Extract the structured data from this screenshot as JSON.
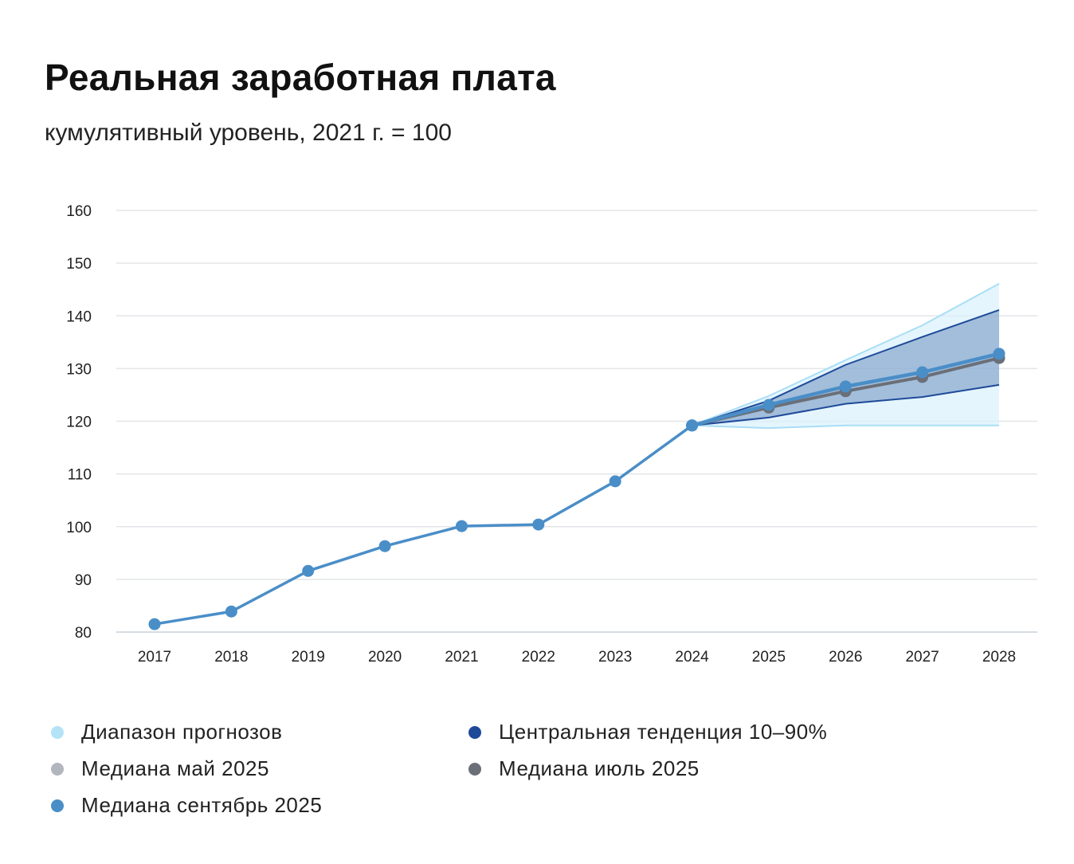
{
  "chart_data": {
    "type": "line",
    "title": "Реальная заработная плата",
    "subtitle": "кумулятивный уровень, 2021 г. = 100",
    "x": [
      2017,
      2018,
      2019,
      2020,
      2021,
      2022,
      2023,
      2024,
      2025,
      2026,
      2027,
      2028
    ],
    "ylim": [
      80,
      160
    ],
    "yticks": [
      80,
      90,
      100,
      110,
      120,
      130,
      140,
      150,
      160
    ],
    "grid": true,
    "legend_placement": "bottom",
    "history": [
      81.5,
      83.9,
      91.6,
      96.3,
      100.1,
      100.4,
      108.6,
      119.2
    ],
    "series": [
      {
        "name": "Диапазон прогнозов",
        "kind": "band",
        "color": "#b3e3f7",
        "x": [
          2024,
          2025,
          2026,
          2027,
          2028
        ],
        "lower": [
          119.2,
          118.7,
          119.2,
          119.2,
          119.2
        ],
        "upper": [
          119.2,
          124.8,
          131.6,
          138.2,
          146.1
        ]
      },
      {
        "name": "Центральная тенденция 10–90%",
        "kind": "band",
        "color": "#1f4a99",
        "x": [
          2024,
          2025,
          2026,
          2027,
          2028
        ],
        "lower": [
          119.2,
          120.7,
          123.3,
          124.6,
          126.9
        ],
        "upper": [
          119.2,
          123.9,
          130.7,
          136.0,
          141.1
        ]
      },
      {
        "name": "Медиана май 2025",
        "kind": "line",
        "color": "#b1b5bd"
      },
      {
        "name": "Медиана июль 2025",
        "kind": "line",
        "color": "#6b6f78",
        "x": [
          2024,
          2025,
          2026,
          2027,
          2028
        ],
        "values": [
          119.2,
          122.6,
          125.7,
          128.4,
          132.0
        ]
      },
      {
        "name": "Медиана сентябрь 2025",
        "kind": "line",
        "color": "#4a8ec8",
        "x": [
          2024,
          2025,
          2026,
          2027,
          2028
        ],
        "values": [
          119.2,
          123.1,
          126.6,
          129.3,
          132.8
        ]
      }
    ]
  }
}
